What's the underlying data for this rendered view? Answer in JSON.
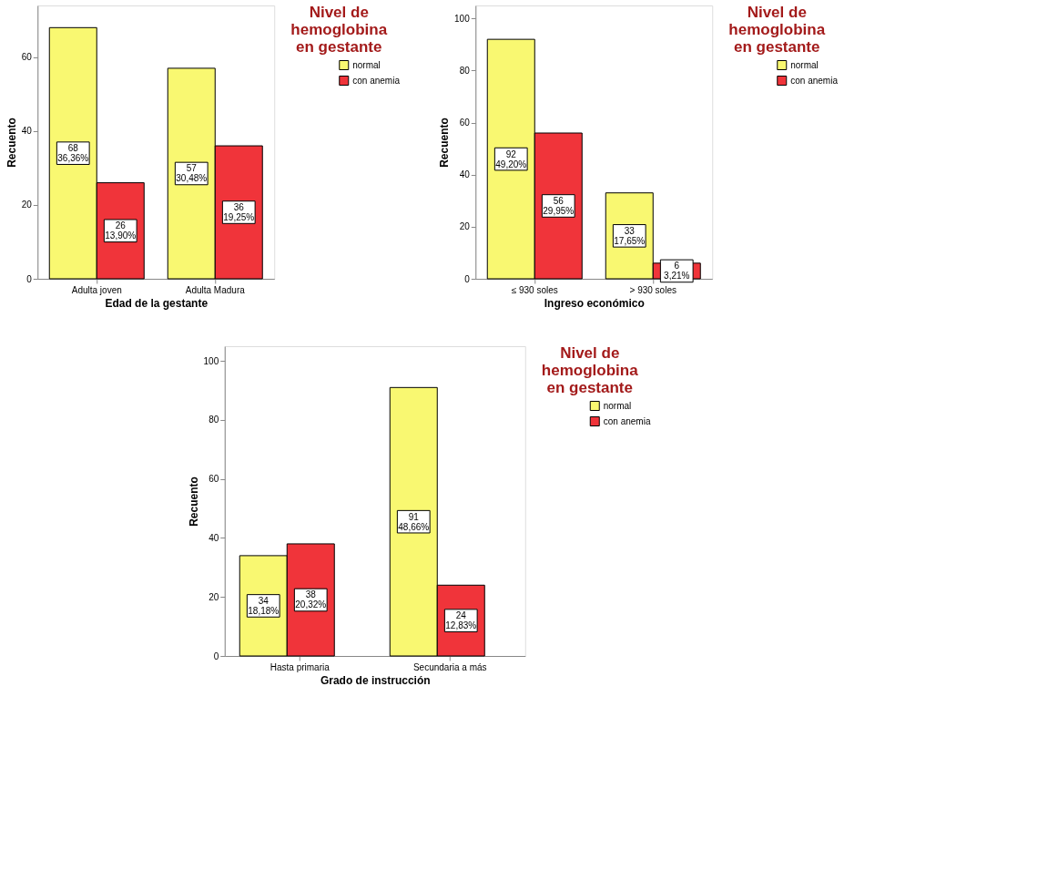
{
  "chart_data": [
    {
      "type": "bar",
      "xlabel": "Edad de la gestante",
      "ylabel": "Recuento",
      "legend_title": "Nivel de hemoglobina en gestante",
      "legend": "top right",
      "grid": false,
      "categories": [
        "Adulta joven",
        "Adulta Madura"
      ],
      "ylim": [
        0,
        74
      ],
      "yticks": [
        0,
        20,
        40,
        60
      ],
      "series": [
        {
          "name": "normal",
          "color": "#f9f871",
          "values": [
            68,
            57
          ],
          "value_labels": [
            "68\n36,36%",
            "57\n30,48%"
          ]
        },
        {
          "name": "con anemia",
          "color": "#f0343a",
          "values": [
            26,
            36
          ],
          "value_labels": [
            "26\n13,90%",
            "36\n19,25%"
          ]
        }
      ]
    },
    {
      "type": "bar",
      "xlabel": "Ingreso económico",
      "ylabel": "Recuento",
      "legend_title": "Nivel de hemoglobina en gestante",
      "legend": "top right",
      "grid": false,
      "categories": [
        "≤ 930 soles",
        "> 930 soles"
      ],
      "ylim": [
        0,
        105
      ],
      "yticks": [
        0,
        20,
        40,
        60,
        80,
        100
      ],
      "series": [
        {
          "name": "normal",
          "color": "#f9f871",
          "values": [
            92,
            33
          ],
          "value_labels": [
            "92\n49,20%",
            "33\n17,65%"
          ]
        },
        {
          "name": "con anemia",
          "color": "#f0343a",
          "values": [
            56,
            6
          ],
          "value_labels": [
            "56\n29,95%",
            "6\n3,21%"
          ]
        }
      ]
    },
    {
      "type": "bar",
      "xlabel": "Grado de instrucción",
      "ylabel": "Recuento",
      "legend_title": "Nivel de hemoglobina en gestante",
      "legend": "top right",
      "grid": false,
      "categories": [
        "Hasta primaria",
        "Secundaria a más"
      ],
      "ylim": [
        0,
        105
      ],
      "yticks": [
        0,
        20,
        40,
        60,
        80,
        100
      ],
      "series": [
        {
          "name": "normal",
          "color": "#f9f871",
          "values": [
            34,
            91
          ],
          "value_labels": [
            "34\n18,18%",
            "91\n48,66%"
          ]
        },
        {
          "name": "con anemia",
          "color": "#f0343a",
          "values": [
            38,
            24
          ],
          "value_labels": [
            "38\n20,32%",
            "24\n12,83%"
          ]
        }
      ]
    }
  ]
}
